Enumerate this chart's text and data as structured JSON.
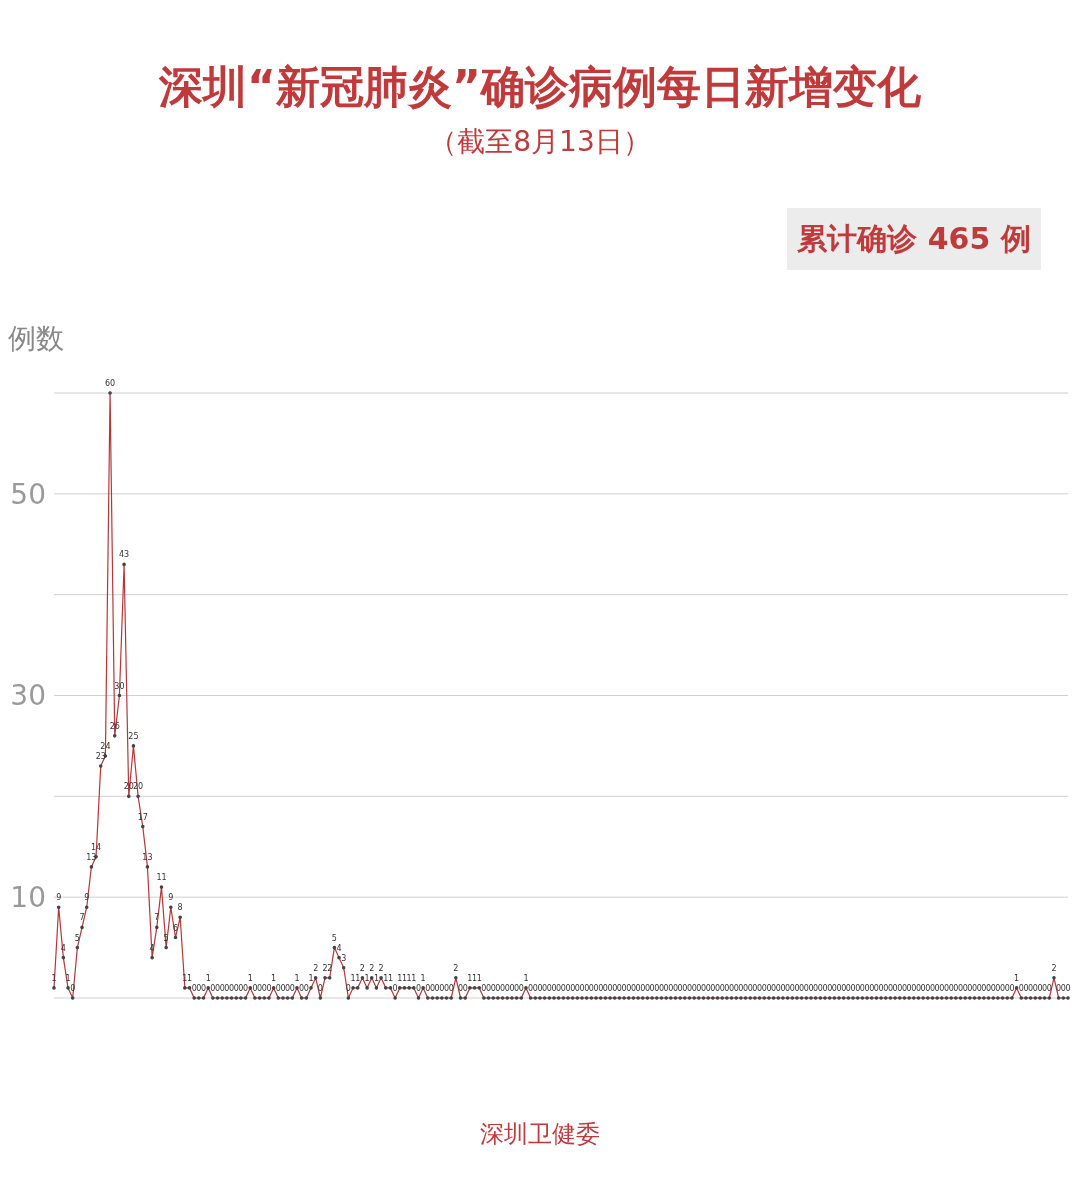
{
  "chart_data": {
    "type": "line",
    "title": "深圳“新冠肺炎”确诊病例每日新增变化",
    "subtitle": "（截至8月13日）",
    "ylabel": "例数",
    "annotations": [
      "累计确诊 465 例",
      "深圳卫健委"
    ],
    "categories": [
      null,
      null,
      null,
      null,
      null,
      null,
      null,
      null,
      null,
      null,
      null,
      null,
      null,
      null,
      null,
      null,
      null,
      null,
      null,
      null,
      null,
      null,
      null,
      null,
      null,
      null,
      null,
      null,
      null,
      null,
      null,
      null,
      null,
      null,
      null,
      null,
      null,
      null,
      null,
      null,
      null,
      null,
      null,
      null,
      null,
      null,
      null,
      null,
      null,
      null,
      null,
      null,
      null,
      null,
      null,
      null,
      null,
      null,
      null,
      null,
      null,
      null,
      null,
      null,
      null,
      null,
      null,
      null,
      null,
      null,
      null,
      null,
      null,
      null,
      null,
      null,
      null,
      null,
      null,
      null,
      null,
      null,
      null,
      null,
      null,
      null,
      null,
      null,
      null,
      null,
      null,
      null,
      null,
      null,
      null,
      null,
      null,
      null,
      null,
      null,
      null,
      null,
      null,
      null,
      null,
      null,
      null,
      null,
      null,
      null,
      null,
      null,
      null,
      null,
      null,
      null,
      null,
      null,
      null,
      null,
      null,
      null,
      null,
      null,
      null,
      null,
      null,
      null,
      null,
      null,
      null,
      null,
      null,
      null,
      null,
      null,
      null,
      null,
      null,
      null,
      null,
      null,
      null,
      null,
      null,
      null,
      null,
      null,
      null,
      null,
      null,
      null,
      null,
      null,
      null,
      null,
      null,
      null,
      null,
      null,
      null,
      null,
      null,
      null,
      null,
      null,
      null,
      null,
      null,
      null,
      null,
      null,
      null,
      null,
      null,
      null,
      null,
      null,
      null,
      null,
      null,
      null,
      null,
      null,
      null,
      null,
      null,
      null,
      null,
      null,
      null,
      null,
      null,
      null,
      null,
      null,
      null,
      null,
      null,
      null,
      null,
      null,
      null,
      null,
      null,
      null,
      null,
      null,
      null,
      null,
      null,
      null,
      null,
      null,
      null,
      null,
      null,
      null
    ],
    "values": [
      1,
      9,
      4,
      1,
      0,
      5,
      7,
      9,
      13,
      14,
      23,
      24,
      60,
      26,
      30,
      43,
      20,
      25,
      20,
      17,
      13,
      4,
      7,
      11,
      5,
      9,
      6,
      8,
      1,
      1,
      0,
      0,
      0,
      1,
      0,
      0,
      0,
      0,
      0,
      0,
      0,
      0,
      1,
      0,
      0,
      0,
      0,
      1,
      0,
      0,
      0,
      0,
      1,
      0,
      0,
      1,
      2,
      0,
      2,
      2,
      5,
      4,
      3,
      0,
      1,
      1,
      2,
      1,
      2,
      1,
      2,
      1,
      1,
      0,
      1,
      1,
      1,
      1,
      0,
      1,
      0,
      0,
      0,
      0,
      0,
      0,
      2,
      0,
      0,
      1,
      1,
      1,
      0,
      0,
      0,
      0,
      0,
      0,
      0,
      0,
      0,
      1,
      0,
      0,
      0,
      0,
      0,
      0,
      0,
      0,
      0,
      0,
      0,
      0,
      0,
      0,
      0,
      0,
      0,
      0,
      0,
      0,
      0,
      0,
      0,
      0,
      0,
      0,
      0,
      0,
      0,
      0,
      0,
      0,
      0,
      0,
      0,
      0,
      0,
      0,
      0,
      0,
      0,
      0,
      0,
      0,
      0,
      0,
      0,
      0,
      0,
      0,
      0,
      0,
      0,
      0,
      0,
      0,
      0,
      0,
      0,
      0,
      0,
      0,
      0,
      0,
      0,
      0,
      0,
      0,
      0,
      0,
      0,
      0,
      0,
      0,
      0,
      0,
      0,
      0,
      0,
      0,
      0,
      0,
      0,
      0,
      0,
      0,
      0,
      0,
      0,
      0,
      0,
      0,
      0,
      0,
      0,
      0,
      0,
      0,
      0,
      0,
      0,
      0,
      0,
      0,
      1,
      0,
      0,
      0,
      0,
      0,
      0,
      0,
      2,
      0,
      0,
      0
    ],
    "color": "#b5373a",
    "ylim": [
      0,
      60
    ],
    "yticks": [
      {
        "value": 0,
        "label": null
      },
      10,
      {
        "value": 20,
        "label": null
      },
      30,
      {
        "value": 40,
        "label": null
      },
      50,
      {
        "value": 60,
        "label": null
      }
    ],
    "grid": "y",
    "marker": "circle",
    "data_labels": true,
    "tick_labels": "y"
  }
}
